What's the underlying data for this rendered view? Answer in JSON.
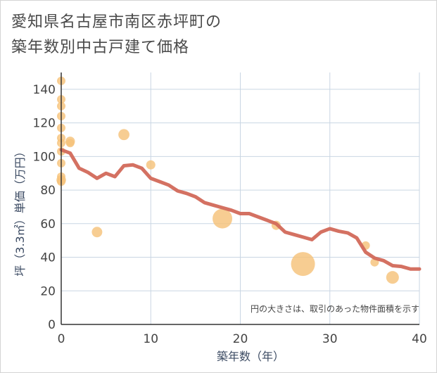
{
  "title": {
    "line1": "愛知県名古屋市南区赤坪町の",
    "line2": "築年数別中古戸建て価格"
  },
  "chart_data": {
    "type": "scatter",
    "xlabel": "築年数（年）",
    "ylabel": "坪（3.3㎡）単価（万円）",
    "xlim": [
      0,
      40
    ],
    "ylim": [
      0,
      150
    ],
    "x_ticks": [
      0,
      10,
      20,
      30,
      40
    ],
    "y_ticks": [
      0,
      20,
      40,
      60,
      80,
      100,
      120,
      140
    ],
    "grid": true,
    "note": "円の大きさは、取引のあった物件面積を示す",
    "colors": {
      "bubble": "#f5c27a",
      "line": "#d2695a",
      "grid": "#c9d6e3",
      "axis": "#333333"
    },
    "bubbles": [
      {
        "x": 0,
        "y": 145,
        "size": 1
      },
      {
        "x": 0,
        "y": 134,
        "size": 1
      },
      {
        "x": 0,
        "y": 130,
        "size": 1
      },
      {
        "x": 0,
        "y": 124,
        "size": 1
      },
      {
        "x": 0,
        "y": 117,
        "size": 1
      },
      {
        "x": 0,
        "y": 111,
        "size": 1
      },
      {
        "x": 0,
        "y": 108,
        "size": 1
      },
      {
        "x": 0,
        "y": 103,
        "size": 1
      },
      {
        "x": 0,
        "y": 96,
        "size": 1
      },
      {
        "x": 0,
        "y": 88,
        "size": 1
      },
      {
        "x": 0,
        "y": 86,
        "size": 1.3
      },
      {
        "x": 0,
        "y": 85,
        "size": 1
      },
      {
        "x": 1,
        "y": 109,
        "size": 1.3
      },
      {
        "x": 1,
        "y": 108,
        "size": 1
      },
      {
        "x": 4,
        "y": 55,
        "size": 1.6
      },
      {
        "x": 7,
        "y": 113,
        "size": 1.8
      },
      {
        "x": 10,
        "y": 95,
        "size": 1.2
      },
      {
        "x": 18,
        "y": 63,
        "size": 6
      },
      {
        "x": 24,
        "y": 59,
        "size": 1.2
      },
      {
        "x": 27,
        "y": 36,
        "size": 9
      },
      {
        "x": 34,
        "y": 47,
        "size": 1
      },
      {
        "x": 35,
        "y": 37,
        "size": 1
      },
      {
        "x": 37,
        "y": 28,
        "size": 2.4
      }
    ],
    "series": [
      {
        "x": [
          0,
          1,
          2,
          3,
          4,
          5,
          6,
          7,
          8,
          9,
          10,
          11,
          12,
          13,
          14,
          15,
          16,
          17,
          18,
          19,
          20,
          21,
          22,
          23,
          24,
          25,
          26,
          27,
          28,
          29,
          30,
          31,
          32,
          33,
          34,
          35,
          36,
          37,
          38,
          39,
          40
        ],
        "values": [
          104,
          102,
          93,
          90.5,
          87,
          90,
          88,
          94.5,
          95,
          93,
          87,
          85,
          83,
          79.5,
          78,
          76,
          72.5,
          71,
          69.5,
          68,
          66,
          66,
          64,
          62,
          60,
          55,
          53.5,
          52,
          50.5,
          55,
          57,
          55.5,
          54.5,
          51.5,
          43,
          39.5,
          38,
          35,
          34.5,
          33,
          33
        ]
      }
    ]
  }
}
